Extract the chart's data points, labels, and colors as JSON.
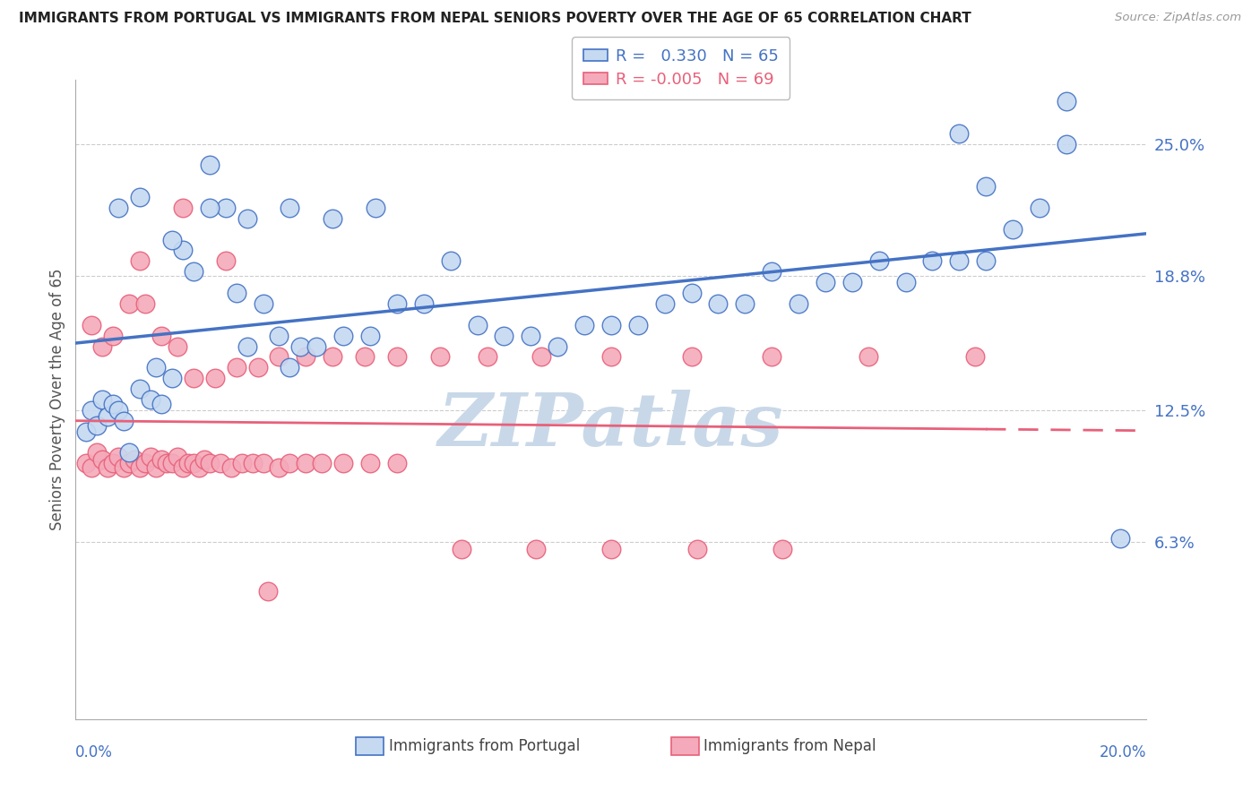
{
  "title": "IMMIGRANTS FROM PORTUGAL VS IMMIGRANTS FROM NEPAL SENIORS POVERTY OVER THE AGE OF 65 CORRELATION CHART",
  "source": "Source: ZipAtlas.com",
  "ylabel": "Seniors Poverty Over the Age of 65",
  "xlabel_bottom_left": "0.0%",
  "xlabel_bottom_right": "20.0%",
  "right_ytick_labels": [
    "25.0%",
    "18.8%",
    "12.5%",
    "6.3%"
  ],
  "right_ytick_values": [
    0.25,
    0.188,
    0.125,
    0.063
  ],
  "legend_label_blue": "Immigrants from Portugal",
  "legend_label_pink": "Immigrants from Nepal",
  "R_blue": 0.33,
  "N_blue": 65,
  "R_pink": -0.005,
  "N_pink": 69,
  "xlim": [
    0.0,
    0.2
  ],
  "ylim": [
    -0.02,
    0.28
  ],
  "blue_scatter_x": [
    0.002,
    0.003,
    0.004,
    0.005,
    0.006,
    0.007,
    0.008,
    0.009,
    0.01,
    0.012,
    0.014,
    0.015,
    0.016,
    0.018,
    0.02,
    0.022,
    0.025,
    0.028,
    0.03,
    0.032,
    0.035,
    0.038,
    0.04,
    0.042,
    0.045,
    0.05,
    0.055,
    0.06,
    0.065,
    0.07,
    0.075,
    0.08,
    0.085,
    0.09,
    0.095,
    0.1,
    0.105,
    0.11,
    0.115,
    0.12,
    0.125,
    0.13,
    0.135,
    0.14,
    0.145,
    0.15,
    0.155,
    0.16,
    0.165,
    0.17,
    0.175,
    0.18,
    0.008,
    0.012,
    0.018,
    0.025,
    0.032,
    0.04,
    0.048,
    0.056,
    0.17,
    0.185,
    0.165,
    0.185,
    0.195
  ],
  "blue_scatter_y": [
    0.115,
    0.125,
    0.118,
    0.13,
    0.122,
    0.128,
    0.125,
    0.12,
    0.105,
    0.135,
    0.13,
    0.145,
    0.128,
    0.14,
    0.2,
    0.19,
    0.24,
    0.22,
    0.18,
    0.155,
    0.175,
    0.16,
    0.145,
    0.155,
    0.155,
    0.16,
    0.16,
    0.175,
    0.175,
    0.195,
    0.165,
    0.16,
    0.16,
    0.155,
    0.165,
    0.165,
    0.165,
    0.175,
    0.18,
    0.175,
    0.175,
    0.19,
    0.175,
    0.185,
    0.185,
    0.195,
    0.185,
    0.195,
    0.195,
    0.195,
    0.21,
    0.22,
    0.22,
    0.225,
    0.205,
    0.22,
    0.215,
    0.22,
    0.215,
    0.22,
    0.23,
    0.25,
    0.255,
    0.27,
    0.065
  ],
  "pink_scatter_x": [
    0.002,
    0.003,
    0.004,
    0.005,
    0.006,
    0.007,
    0.008,
    0.009,
    0.01,
    0.011,
    0.012,
    0.013,
    0.014,
    0.015,
    0.016,
    0.017,
    0.018,
    0.019,
    0.02,
    0.021,
    0.022,
    0.023,
    0.024,
    0.025,
    0.027,
    0.029,
    0.031,
    0.033,
    0.035,
    0.038,
    0.04,
    0.043,
    0.046,
    0.05,
    0.055,
    0.06,
    0.003,
    0.005,
    0.007,
    0.01,
    0.013,
    0.016,
    0.019,
    0.022,
    0.026,
    0.03,
    0.034,
    0.038,
    0.043,
    0.048,
    0.054,
    0.06,
    0.068,
    0.077,
    0.087,
    0.1,
    0.115,
    0.13,
    0.148,
    0.168,
    0.072,
    0.086,
    0.1,
    0.116,
    0.132,
    0.012,
    0.02,
    0.028,
    0.036
  ],
  "pink_scatter_y": [
    0.1,
    0.098,
    0.105,
    0.102,
    0.098,
    0.1,
    0.103,
    0.098,
    0.1,
    0.102,
    0.098,
    0.1,
    0.103,
    0.098,
    0.102,
    0.1,
    0.1,
    0.103,
    0.098,
    0.1,
    0.1,
    0.098,
    0.102,
    0.1,
    0.1,
    0.098,
    0.1,
    0.1,
    0.1,
    0.098,
    0.1,
    0.1,
    0.1,
    0.1,
    0.1,
    0.1,
    0.165,
    0.155,
    0.16,
    0.175,
    0.175,
    0.16,
    0.155,
    0.14,
    0.14,
    0.145,
    0.145,
    0.15,
    0.15,
    0.15,
    0.15,
    0.15,
    0.15,
    0.15,
    0.15,
    0.15,
    0.15,
    0.15,
    0.15,
    0.15,
    0.06,
    0.06,
    0.06,
    0.06,
    0.06,
    0.195,
    0.22,
    0.195,
    0.04
  ],
  "blue_line_color": "#4472C4",
  "pink_line_color": "#E8607A",
  "blue_scatter_facecolor": "#C5D9F1",
  "pink_scatter_facecolor": "#F4AABA",
  "grid_color": "#CCCCCC",
  "watermark_text": "ZIPatlas",
  "watermark_color": "#C8D8E8"
}
